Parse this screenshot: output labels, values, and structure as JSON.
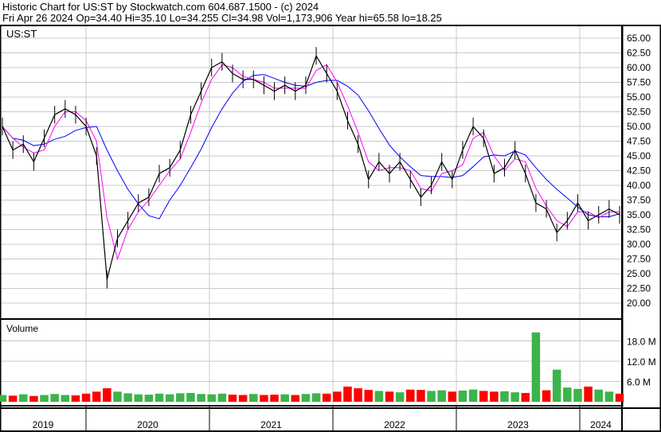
{
  "header": {
    "title": "Historic Chart for US:ST by Stockwatch.com 604.687.1500 - (c) 2024",
    "quote": "Fri Apr 26 2024   Op=34.40  Hi=35.10  Lo=34.255  Cl=34.98  Vol=1,173,906  Year hi=65.58  lo=18.25"
  },
  "colors": {
    "price": "#000000",
    "ma_short": "#ff00ff",
    "ma_long": "#0000ff",
    "vol_up": "#3cb44b",
    "vol_down": "#ff0000",
    "grid": "#c8c8c8"
  },
  "chart_data": [
    {
      "type": "line",
      "title": "US:ST",
      "ylim": [
        17.5,
        67
      ],
      "y_ticks": [
        "65.00",
        "62.50",
        "60.00",
        "57.50",
        "55.00",
        "52.50",
        "50.00",
        "47.50",
        "45.00",
        "42.50",
        "40.00",
        "37.50",
        "35.00",
        "32.50",
        "30.00",
        "27.50",
        "25.00",
        "22.50",
        "20.00"
      ],
      "x_ticks": [
        "2019",
        "2020",
        "2021",
        "2022",
        "2023",
        "2024"
      ],
      "x_start": "2019-05",
      "x_step": "month",
      "series": [
        {
          "values": [
            50,
            46,
            47,
            44,
            48,
            52,
            53,
            52,
            50,
            45,
            24,
            31,
            34,
            37,
            38,
            42,
            43,
            46,
            52,
            56,
            60,
            61,
            59,
            58,
            58,
            57,
            56,
            57,
            56,
            57,
            62,
            59,
            56,
            51,
            47,
            41,
            44,
            42,
            44,
            41,
            38,
            40,
            44,
            41,
            46,
            50,
            48,
            42,
            43,
            46,
            42,
            37,
            36,
            32,
            34,
            37,
            34,
            35,
            36,
            35
          ]
        }
      ]
    },
    {
      "type": "bar",
      "title": "Volume",
      "y_ticks": [
        "18.0 M",
        "12.0 M",
        "6.0 M"
      ],
      "ylim": [
        0,
        24
      ],
      "values_millions": [
        2,
        1.8,
        2.2,
        1.7,
        2,
        2.3,
        2,
        1.9,
        2.4,
        3,
        4,
        3,
        2.5,
        2.2,
        2.1,
        2.4,
        2.2,
        2.5,
        2.6,
        2.3,
        2.2,
        2.4,
        2.1,
        2,
        2.3,
        2,
        2.1,
        2.2,
        2,
        2.3,
        2.5,
        2.4,
        3,
        4.5,
        4,
        3.5,
        3.2,
        3,
        2.8,
        3.6,
        3.5,
        3.2,
        3.4,
        3,
        3.3,
        3.6,
        3.2,
        3,
        3.1,
        2.8,
        2.6,
        20.5,
        3.4,
        9.5,
        4.2,
        3.8,
        4.5,
        3.6,
        3,
        2.4
      ],
      "up": [
        1,
        0,
        1,
        0,
        1,
        1,
        1,
        0,
        0,
        0,
        0,
        1,
        1,
        1,
        1,
        1,
        1,
        1,
        1,
        1,
        1,
        1,
        0,
        0,
        1,
        0,
        0,
        1,
        0,
        1,
        1,
        0,
        0,
        0,
        0,
        0,
        1,
        0,
        1,
        0,
        0,
        1,
        1,
        0,
        1,
        1,
        0,
        0,
        1,
        1,
        0,
        1,
        0,
        1,
        1,
        1,
        0,
        1,
        1,
        0
      ]
    }
  ]
}
